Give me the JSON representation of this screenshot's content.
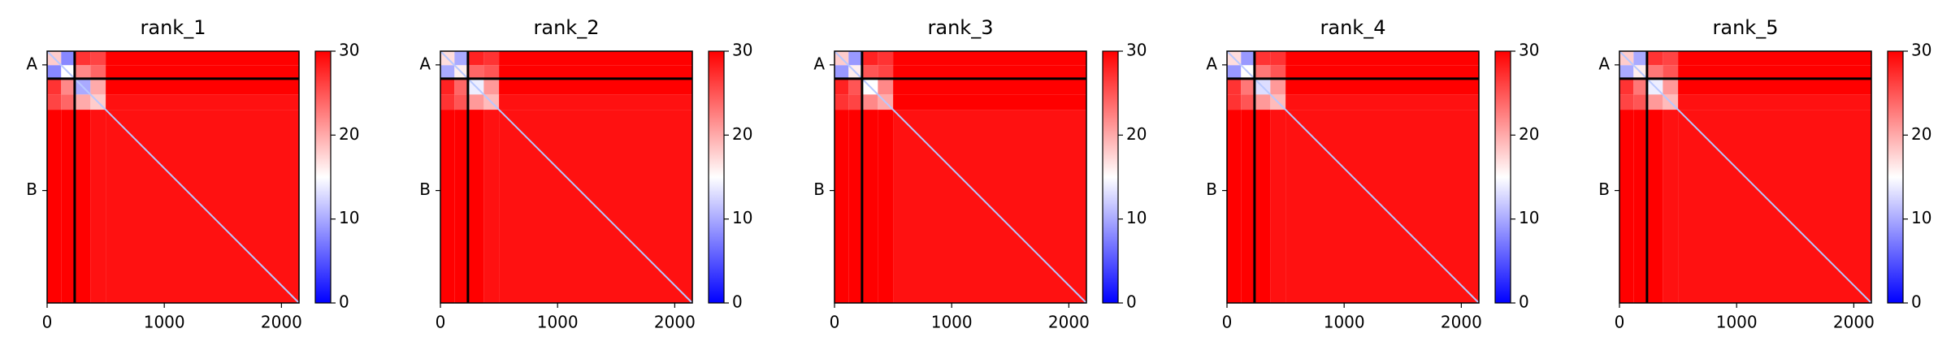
{
  "chart_data": [
    {
      "type": "heatmap",
      "title": "rank_1",
      "colormap": "bwr",
      "bins": [
        0,
        120,
        235,
        370,
        500,
        2150
      ],
      "values": [
        [
          18,
          8,
          27,
          26,
          30
        ],
        [
          8,
          15,
          22,
          24,
          30
        ],
        [
          27,
          22,
          10,
          20,
          30
        ],
        [
          26,
          24,
          20,
          18,
          29
        ],
        [
          30,
          30,
          30,
          29,
          29
        ]
      ],
      "xlim": [
        0,
        2150
      ],
      "ylim": [
        2150,
        0
      ],
      "xticks": [
        0,
        1000,
        2000
      ],
      "yticks": [
        {
          "value": 117,
          "label": "A"
        },
        {
          "value": 1190,
          "label": "B"
        }
      ],
      "chain_breaks": [
        235
      ],
      "clim": [
        0,
        30
      ],
      "cticks": [
        0,
        10,
        20,
        30
      ]
    },
    {
      "type": "heatmap",
      "title": "rank_2",
      "colormap": "bwr",
      "bins": [
        0,
        120,
        235,
        370,
        500,
        2150
      ],
      "values": [
        [
          17,
          10,
          28,
          27,
          30
        ],
        [
          10,
          16,
          24,
          25,
          30
        ],
        [
          28,
          24,
          14,
          21,
          30
        ],
        [
          27,
          25,
          21,
          19,
          29
        ],
        [
          30,
          30,
          30,
          29,
          29
        ]
      ],
      "xlim": [
        0,
        2150
      ],
      "ylim": [
        2150,
        0
      ],
      "xticks": [
        0,
        1000,
        2000
      ],
      "yticks": [
        {
          "value": 117,
          "label": "A"
        },
        {
          "value": 1190,
          "label": "B"
        }
      ],
      "chain_breaks": [
        235
      ],
      "clim": [
        0,
        30
      ],
      "cticks": [
        0,
        10,
        20,
        30
      ]
    },
    {
      "type": "heatmap",
      "title": "rank_3",
      "colormap": "bwr",
      "bins": [
        0,
        120,
        235,
        370,
        500,
        2150
      ],
      "values": [
        [
          18,
          9,
          28,
          27,
          30
        ],
        [
          9,
          16,
          25,
          26,
          30
        ],
        [
          28,
          25,
          15,
          22,
          30
        ],
        [
          27,
          26,
          22,
          20,
          30
        ],
        [
          30,
          30,
          30,
          30,
          29
        ]
      ],
      "xlim": [
        0,
        2150
      ],
      "ylim": [
        2150,
        0
      ],
      "xticks": [
        0,
        1000,
        2000
      ],
      "yticks": [
        {
          "value": 117,
          "label": "A"
        },
        {
          "value": 1190,
          "label": "B"
        }
      ],
      "chain_breaks": [
        235
      ],
      "clim": [
        0,
        30
      ],
      "cticks": [
        0,
        10,
        20,
        30
      ]
    },
    {
      "type": "heatmap",
      "title": "rank_4",
      "colormap": "bwr",
      "bins": [
        0,
        120,
        235,
        370,
        500,
        2150
      ],
      "values": [
        [
          17,
          9,
          27,
          27,
          30
        ],
        [
          9,
          15,
          23,
          25,
          30
        ],
        [
          27,
          23,
          13,
          21,
          30
        ],
        [
          27,
          25,
          21,
          19,
          29
        ],
        [
          30,
          30,
          30,
          29,
          29
        ]
      ],
      "xlim": [
        0,
        2150
      ],
      "ylim": [
        2150,
        0
      ],
      "xticks": [
        0,
        1000,
        2000
      ],
      "yticks": [
        {
          "value": 117,
          "label": "A"
        },
        {
          "value": 1190,
          "label": "B"
        }
      ],
      "chain_breaks": [
        235
      ],
      "clim": [
        0,
        30
      ],
      "cticks": [
        0,
        10,
        20,
        30
      ]
    },
    {
      "type": "heatmap",
      "title": "rank_5",
      "colormap": "bwr",
      "bins": [
        0,
        120,
        235,
        370,
        500,
        2150
      ],
      "values": [
        [
          18,
          10,
          27,
          26,
          30
        ],
        [
          10,
          16,
          23,
          25,
          30
        ],
        [
          27,
          23,
          14,
          21,
          30
        ],
        [
          26,
          25,
          21,
          19,
          29
        ],
        [
          30,
          30,
          30,
          29,
          29
        ]
      ],
      "xlim": [
        0,
        2150
      ],
      "ylim": [
        2150,
        0
      ],
      "xticks": [
        0,
        1000,
        2000
      ],
      "yticks": [
        {
          "value": 117,
          "label": "A"
        },
        {
          "value": 1190,
          "label": "B"
        }
      ],
      "chain_breaks": [
        235
      ],
      "clim": [
        0,
        30
      ],
      "cticks": [
        0,
        10,
        20,
        30
      ]
    }
  ]
}
